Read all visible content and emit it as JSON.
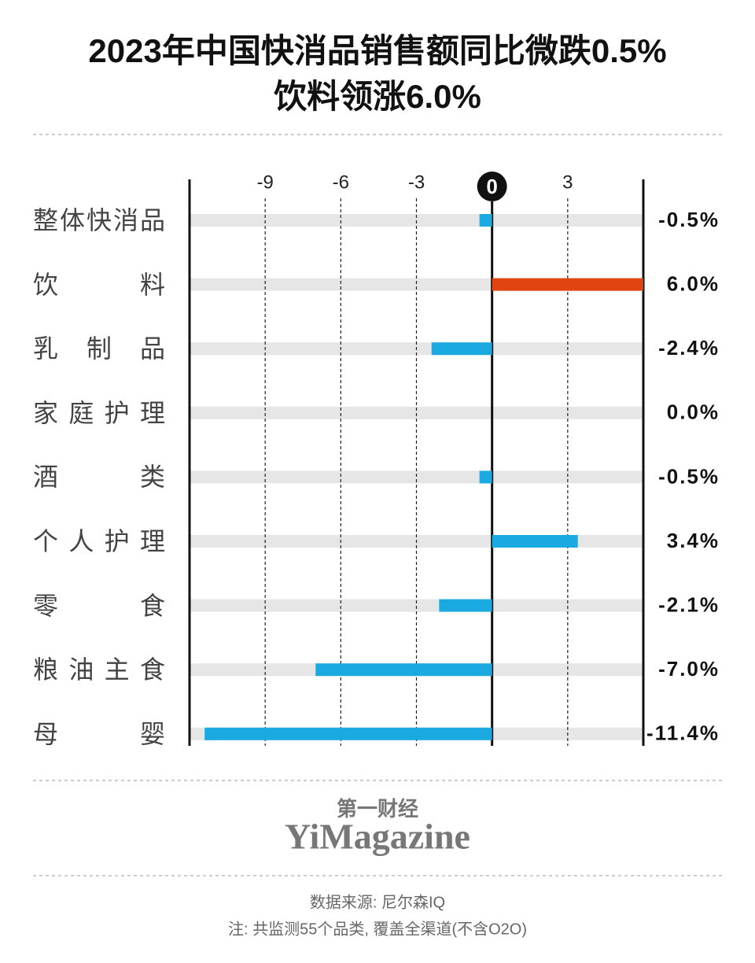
{
  "chart_data": {
    "type": "hbar",
    "title": [
      "2023年中国快消品销售额同比微跌0.5%",
      "饮料领涨6.0%"
    ],
    "categories": [
      "整体快消品",
      "饮料",
      "乳制品",
      "家庭护理",
      "酒类",
      "个人护理",
      "零食",
      "粮油主食",
      "母婴"
    ],
    "values": [
      -0.5,
      6.0,
      -2.4,
      0.0,
      -0.5,
      3.4,
      -2.1,
      -7.0,
      -11.4
    ],
    "value_labels": [
      "-0.5%",
      "6.0%",
      "-2.4%",
      "0.0%",
      "-0.5%",
      "3.4%",
      "-2.1%",
      "-7.0%",
      "-11.4%"
    ],
    "colors": [
      "#1ba9e1",
      "#e2440f",
      "#1ba9e1",
      "#1ba9e1",
      "#1ba9e1",
      "#1ba9e1",
      "#1ba9e1",
      "#1ba9e1",
      "#1ba9e1"
    ],
    "xlim": [
      -12,
      6
    ],
    "xticks": [
      -9,
      -6,
      -3,
      0,
      3
    ],
    "grid": true
  },
  "brand": {
    "cn": "第一财经",
    "en": "YiMagazine"
  },
  "source": "数据来源: 尼尔森IQ",
  "note": "注: 共监测55个品类, 覆盖全渠道(不含O2O)"
}
